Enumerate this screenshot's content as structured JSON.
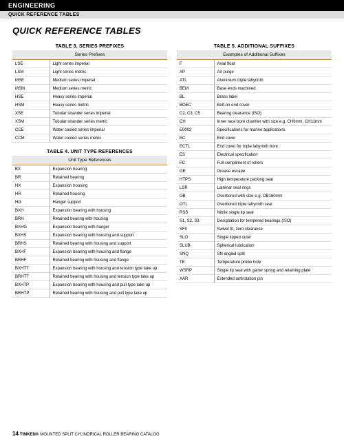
{
  "header": {
    "section": "ENGINEERING",
    "subsection": "QUICK REFERENCE TABLES"
  },
  "main_title": "QUICK REFERENCE TABLES",
  "table3": {
    "title": "TABLE 3. SERIES PREFIXES",
    "header": "Series Prefixes",
    "rows": [
      {
        "c": "LSE",
        "d": "Light series imperial"
      },
      {
        "c": "LSM",
        "d": "Light series metric"
      },
      {
        "c": "MSE",
        "d": "Medium series imperial"
      },
      {
        "c": "MSM",
        "d": "Medium series metric"
      },
      {
        "c": "HSE",
        "d": "Heavy series imperial"
      },
      {
        "c": "HSM",
        "d": "Heavy series metric"
      },
      {
        "c": "XSE",
        "d": "Tubular strander series imperial"
      },
      {
        "c": "XSM",
        "d": "Tubular strander series metric"
      },
      {
        "c": "CCE",
        "d": "Water cooled series imperial"
      },
      {
        "c": "CCM",
        "d": "Water cooled series metric"
      }
    ]
  },
  "table4": {
    "title": "TABLE 4. UNIT TYPE REFERENCES",
    "header": "Unit Type References",
    "rows": [
      {
        "c": "BX",
        "d": "Expansion bearing"
      },
      {
        "c": "BR",
        "d": "Retained bearing"
      },
      {
        "c": "HX",
        "d": "Expansion housing"
      },
      {
        "c": "HR",
        "d": "Retained housing"
      },
      {
        "c": "HG",
        "d": "Hanger support"
      },
      {
        "c": "BXH",
        "d": "Expansion bearing with housing"
      },
      {
        "c": "BRH",
        "d": "Retained bearing with housing"
      },
      {
        "c": "BXHG",
        "d": "Expansion bearing with hanger"
      },
      {
        "c": "BXHS",
        "d": "Expansion bearing with housing and support"
      },
      {
        "c": "BRHS",
        "d": "Retained bearing with housing and support"
      },
      {
        "c": "BXHF",
        "d": "Expansion bearing with housing and flange"
      },
      {
        "c": "BRHF",
        "d": "Retained bearing with housing and flange"
      },
      {
        "c": "BXHTT",
        "d": "Expansion bearing with housing and tension type take up"
      },
      {
        "c": "BRHTT",
        "d": "Retained bearing with housing and tension type take up"
      },
      {
        "c": "BXHTP",
        "d": "Expansion bearing with housing and pull type take up"
      },
      {
        "c": "BRHTP",
        "d": "Retained bearing with housing and pull type take up"
      }
    ]
  },
  "table5": {
    "title": "TABLE 5. ADDITIONAL SUFFIXES",
    "header": "Examples of Additional Suffixes",
    "rows": [
      {
        "c": "F",
        "d": "Axial float"
      },
      {
        "c": "AP",
        "d": "Air purge"
      },
      {
        "c": "ATL",
        "d": "Aluminium triple labyrinth"
      },
      {
        "c": "BEM",
        "d": "Base ends machined"
      },
      {
        "c": "BL",
        "d": "Brass label"
      },
      {
        "c": "BOEC",
        "d": "Bolt-on end cover"
      },
      {
        "c": "C2, C3, C5",
        "d": "Bearing clearance (ISO)"
      },
      {
        "c": "CH",
        "d": "Inner race bore chamfer with size e.g. CH6mm, CH11mm"
      },
      {
        "c": "E0002",
        "d": "Specifications for marine applications"
      },
      {
        "c": "EC",
        "d": "End cover"
      },
      {
        "c": "ECTL",
        "d": "End cover for triple labyrinth bore"
      },
      {
        "c": "ES",
        "d": "Electrical specification"
      },
      {
        "c": "FC",
        "d": "Full compliment of rollers"
      },
      {
        "c": "GE",
        "d": "Grease escape"
      },
      {
        "c": "HTPS",
        "d": "High temperature packing seal"
      },
      {
        "c": "LSR",
        "d": "Laminar seal rings"
      },
      {
        "c": "OB",
        "d": "Overbored with size e.g. OB160mm"
      },
      {
        "c": "OTL",
        "d": "Overbored triple labyrinth seal"
      },
      {
        "c": "RSS",
        "d": "Nitrile single lip seal"
      },
      {
        "c": "S1, S2, S3",
        "d": "Designation for tempered bearings (ISO)"
      },
      {
        "c": "SF0",
        "d": "Swivel fit, zero clearance"
      },
      {
        "c": "SLO",
        "d": "Single lipped outer"
      },
      {
        "c": "SLUB",
        "d": "Spherical lubrication"
      },
      {
        "c": "SNQ",
        "d": "SN angled split"
      },
      {
        "c": "TE",
        "d": "Temperature probe hole"
      },
      {
        "c": "WSRP",
        "d": "Single lip seal with garter spring and retaining plate"
      },
      {
        "c": "XAR",
        "d": "Extended antirotation pin"
      }
    ]
  },
  "footer": {
    "page": "14",
    "brand": "TIMKEN®",
    "text": "MOUNTED SPLIT CYLINDRICAL ROLLER BEARING CATALOG"
  },
  "colors": {
    "accent": "#e08000",
    "header_bg": "#e8e8e8",
    "row_border": "#ddd"
  }
}
